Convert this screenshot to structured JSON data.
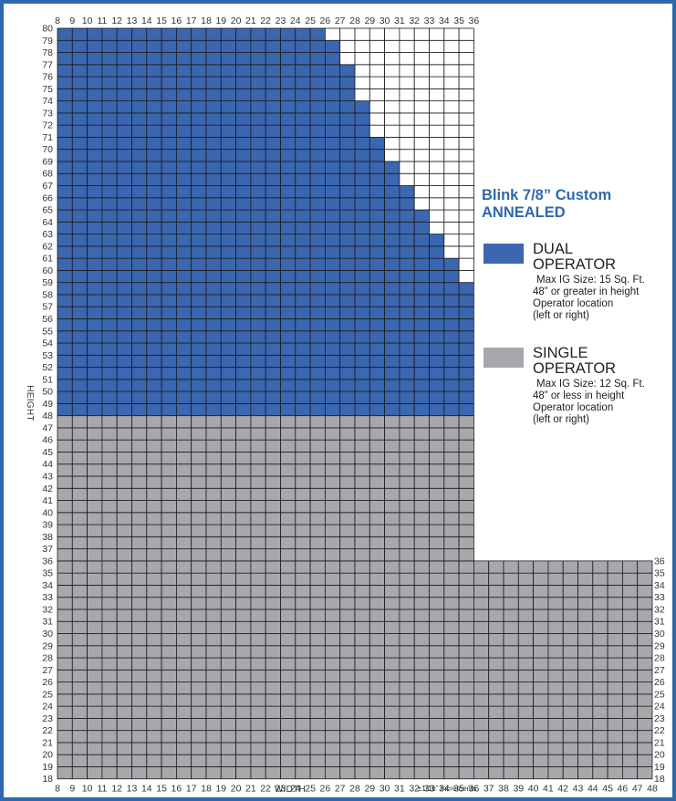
{
  "chart_data": {
    "type": "heatmap",
    "title": "Blink 7/8” Custom",
    "subtitle": "ANNEALED",
    "xlabel": "WIDTH",
    "ylabel": "HEIGHT",
    "note": "±1/16” Increments",
    "x_top_ticks": [
      8,
      9,
      10,
      11,
      12,
      13,
      14,
      15,
      16,
      17,
      18,
      19,
      20,
      21,
      22,
      23,
      24,
      25,
      26,
      27,
      28,
      29,
      30,
      31,
      32,
      33,
      34,
      35,
      36
    ],
    "x_bottom_ticks": [
      8,
      9,
      10,
      11,
      12,
      13,
      14,
      15,
      16,
      17,
      18,
      19,
      20,
      21,
      22,
      23,
      24,
      25,
      26,
      27,
      28,
      29,
      30,
      31,
      32,
      33,
      34,
      35,
      36,
      37,
      38,
      39,
      40,
      41,
      42,
      43,
      44,
      45,
      46,
      47,
      48
    ],
    "y_left_ticks": [
      80,
      18
    ],
    "y_right_ticks": [
      36,
      18
    ],
    "xlim": [
      8,
      48
    ],
    "ylim": [
      18,
      80
    ],
    "series": [
      {
        "name": "DUAL OPERATOR",
        "color": "#3b66b0",
        "height_range": [
          48,
          80
        ],
        "max_height_by_width": [
          {
            "width": 8,
            "max_height": 80
          },
          {
            "width": 9,
            "max_height": 80
          },
          {
            "width": 10,
            "max_height": 80
          },
          {
            "width": 11,
            "max_height": 80
          },
          {
            "width": 12,
            "max_height": 80
          },
          {
            "width": 13,
            "max_height": 80
          },
          {
            "width": 14,
            "max_height": 80
          },
          {
            "width": 15,
            "max_height": 80
          },
          {
            "width": 16,
            "max_height": 80
          },
          {
            "width": 17,
            "max_height": 80
          },
          {
            "width": 18,
            "max_height": 80
          },
          {
            "width": 19,
            "max_height": 80
          },
          {
            "width": 20,
            "max_height": 80
          },
          {
            "width": 21,
            "max_height": 80
          },
          {
            "width": 22,
            "max_height": 80
          },
          {
            "width": 23,
            "max_height": 80
          },
          {
            "width": 24,
            "max_height": 80
          },
          {
            "width": 25,
            "max_height": 80
          },
          {
            "width": 26,
            "max_height": 79
          },
          {
            "width": 27,
            "max_height": 77
          },
          {
            "width": 28,
            "max_height": 74
          },
          {
            "width": 29,
            "max_height": 71
          },
          {
            "width": 30,
            "max_height": 69
          },
          {
            "width": 31,
            "max_height": 67
          },
          {
            "width": 32,
            "max_height": 65
          },
          {
            "width": 33,
            "max_height": 63
          },
          {
            "width": 34,
            "max_height": 61
          },
          {
            "width": 35,
            "max_height": 59
          }
        ]
      },
      {
        "name": "SINGLE OPERATOR",
        "color": "#a6a8ab",
        "regions": [
          {
            "width_range": [
              8,
              36
            ],
            "height_range": [
              18,
              48
            ]
          },
          {
            "width_range": [
              36,
              48
            ],
            "height_range": [
              18,
              36
            ]
          }
        ]
      }
    ]
  },
  "legend": {
    "title": "Blink 7/8” Custom",
    "subtitle": "ANNEALED",
    "items": [
      {
        "name_line1": "DUAL",
        "name_line2": "OPERATOR",
        "color": "#3b66b0",
        "details": [
          "Max IG Size: 15 Sq. Ft.",
          "48” or greater in height",
          "Operator location",
          "(left or right)"
        ]
      },
      {
        "name_line1": "SINGLE",
        "name_line2": "OPERATOR",
        "color": "#a6a8ab",
        "details": [
          "Max IG Size: 12 Sq. Ft.",
          "48” or less in height",
          "Operator location",
          "(left or right)"
        ]
      }
    ]
  },
  "colors": {
    "frame": "#2f68ad",
    "dual": "#3b66b0",
    "single": "#a6a8ab",
    "empty": "#ffffff",
    "gridline": "#1c1c1c"
  }
}
